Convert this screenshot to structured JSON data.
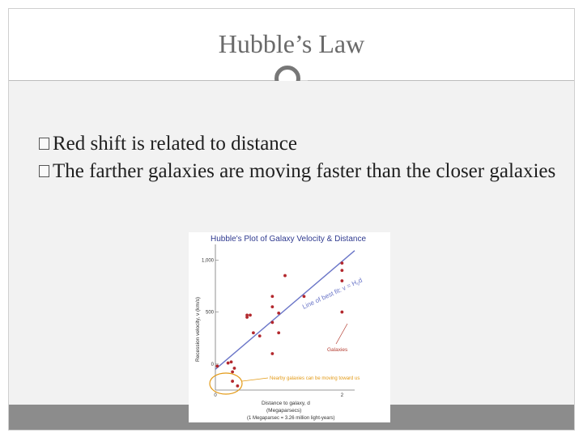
{
  "slide": {
    "title": "Hubble’s Law",
    "bullets": [
      "Red shift is related to distance",
      "The farther galaxies are moving faster than the closer galaxies"
    ],
    "colors": {
      "title": "#6a6a6a",
      "content_bg": "#f2f2f2",
      "bottom_bar": "#8c8c8c"
    }
  },
  "chart_data": {
    "type": "scatter",
    "title": "Hubble's Plot of Galaxy Velocity & Distance",
    "xlabel": "Distance to galaxy, d",
    "xlabel_sub": "(Megaparsecs)",
    "xlabel_note": "(1 Megaparsec = 3.26 million light-years)",
    "ylabel": "Recession velocity, v (km/s)",
    "xlim": [
      0,
      2.2
    ],
    "ylim": [
      -250,
      1150
    ],
    "x_ticks": [
      0,
      2
    ],
    "y_ticks": [
      0,
      500,
      1000
    ],
    "y_tick_labels": [
      "0",
      "500",
      "1,000"
    ],
    "series": [
      {
        "x": [
          0.03,
          0.2,
          0.25,
          0.27,
          0.27,
          0.3,
          0.35,
          0.5,
          0.5,
          0.55,
          0.6,
          0.7,
          0.9,
          0.9,
          0.9,
          0.9,
          1.0,
          1.0,
          1.1,
          1.4,
          2.0,
          2.0,
          2.0,
          2.0
        ],
        "y": [
          -20,
          10,
          20,
          -75,
          -165,
          -40,
          -210,
          450,
          470,
          470,
          300,
          270,
          650,
          550,
          400,
          100,
          300,
          490,
          850,
          650,
          900,
          970,
          800,
          500
        ]
      }
    ],
    "fit_line": {
      "label_line1": "Line of best fit: v = H",
      "label_sub": "0",
      "label_line2": "d",
      "x": [
        0,
        2.2
      ],
      "y": [
        -50,
        1090
      ]
    },
    "annotations": {
      "galaxies_label": "Galaxies",
      "nearby_label": "Nearby galaxies can be moving toward us"
    },
    "colors": {
      "points": "#b3282d",
      "fit": "#6b76c8",
      "title": "#2f3a8f",
      "orange": "#e39a16"
    }
  }
}
